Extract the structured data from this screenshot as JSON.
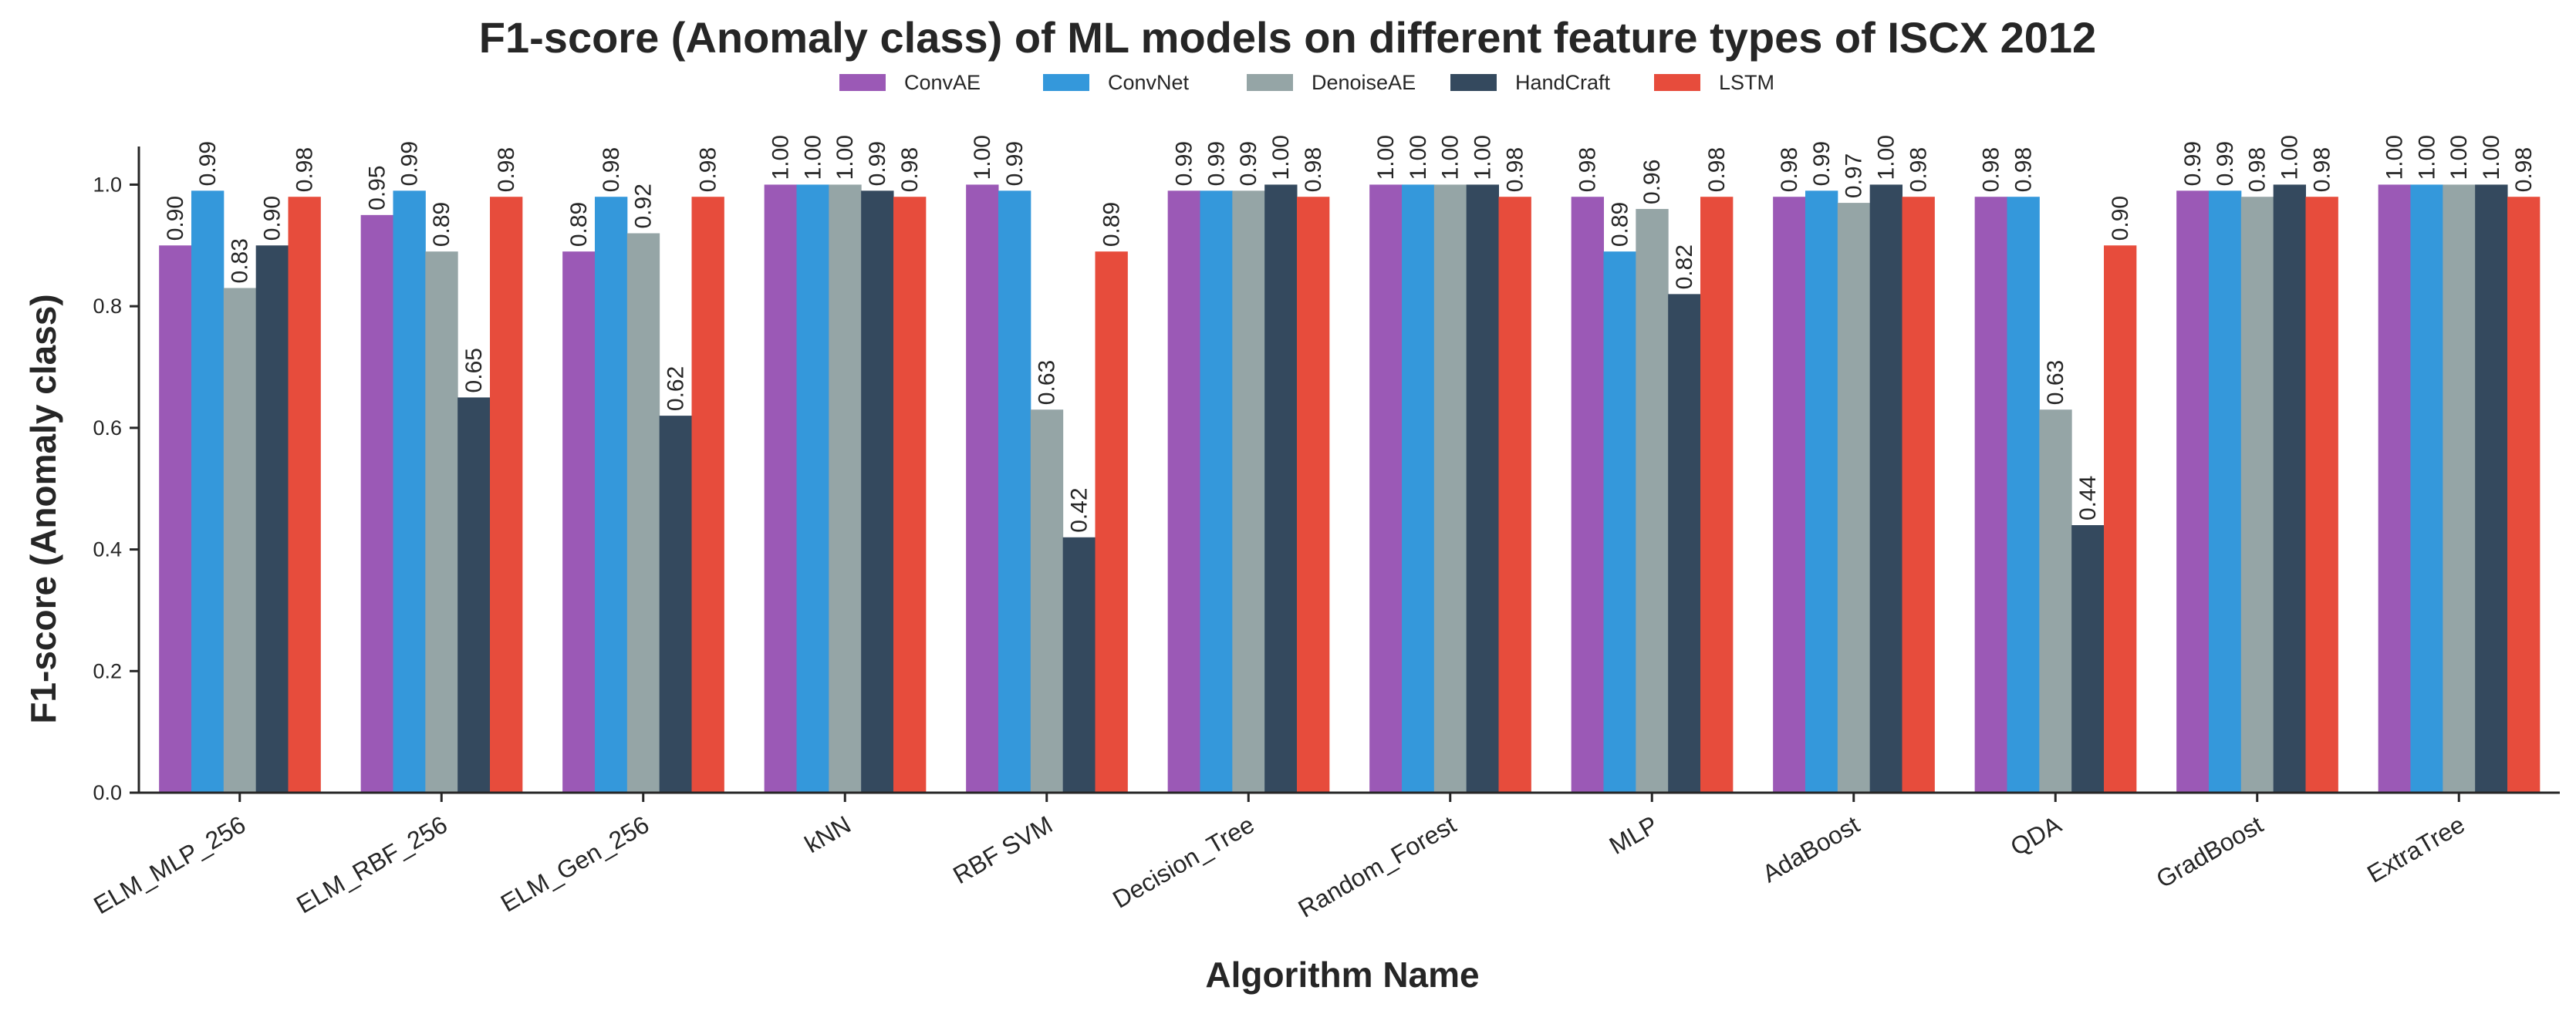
{
  "chart_data": {
    "type": "bar",
    "title": "F1-score (Anomaly class) of ML models on different feature types of ISCX 2012",
    "xlabel": "Algorithm Name",
    "ylabel": "F1-score (Anomaly class)",
    "ylim": [
      0,
      1.05
    ],
    "yticks": [
      "0.0",
      "0.2",
      "0.4",
      "0.6",
      "0.8",
      "1.0"
    ],
    "grid": false,
    "legend_position": "top-center",
    "categories": [
      "ELM_MLP_256",
      "ELM_RBF_256",
      "ELM_Gen_256",
      "kNN",
      "RBF SVM",
      "Decision_Tree",
      "Random_Forest",
      "MLP",
      "AdaBoost",
      "QDA",
      "GradBoost",
      "ExtraTree"
    ],
    "series": [
      {
        "name": "ConvAE",
        "color": "#9b59b6",
        "values": [
          0.9,
          0.95,
          0.89,
          1.0,
          1.0,
          0.99,
          1.0,
          0.98,
          0.98,
          0.98,
          0.99,
          1.0
        ],
        "labels": [
          "0.90",
          "0.95",
          "0.89",
          "1.00",
          "1.00",
          "0.99",
          "1.00",
          "0.98",
          "0.98",
          "0.98",
          "0.99",
          "1.00"
        ]
      },
      {
        "name": "ConvNet",
        "color": "#3498db",
        "values": [
          0.99,
          0.99,
          0.98,
          1.0,
          0.99,
          0.99,
          1.0,
          0.89,
          0.99,
          0.98,
          0.99,
          1.0
        ],
        "labels": [
          "0.99",
          "0.99",
          "0.98",
          "1.00",
          "0.99",
          "0.99",
          "1.00",
          "0.89",
          "0.99",
          "0.98",
          "0.99",
          "1.00"
        ]
      },
      {
        "name": "DenoiseAE",
        "color": "#95a5a6",
        "values": [
          0.83,
          0.89,
          0.92,
          1.0,
          0.63,
          0.99,
          1.0,
          0.96,
          0.97,
          0.63,
          0.98,
          1.0
        ],
        "labels": [
          "0.83",
          "0.89",
          "0.92",
          "1.00",
          "0.63",
          "0.99",
          "1.00",
          "0.96",
          "0.97",
          "0.63",
          "0.98",
          "1.00"
        ]
      },
      {
        "name": "HandCraft",
        "color": "#34495e",
        "values": [
          0.9,
          0.65,
          0.62,
          0.99,
          0.42,
          1.0,
          1.0,
          0.82,
          1.0,
          0.44,
          1.0,
          1.0
        ],
        "labels": [
          "0.90",
          "0.65",
          "0.62",
          "0.99",
          "0.42",
          "1.00",
          "1.00",
          "0.82",
          "1.00",
          "0.44",
          "1.00",
          "1.00"
        ]
      },
      {
        "name": "LSTM",
        "color": "#e74c3c",
        "values": [
          0.98,
          0.98,
          0.98,
          0.98,
          0.89,
          0.98,
          0.98,
          0.98,
          0.98,
          0.9,
          0.98,
          0.98
        ],
        "labels": [
          "0.98",
          "0.98",
          "0.98",
          "0.98",
          "0.89",
          "0.98",
          "0.98",
          "0.98",
          "0.98",
          "0.90",
          "0.98",
          "0.98"
        ]
      }
    ]
  }
}
